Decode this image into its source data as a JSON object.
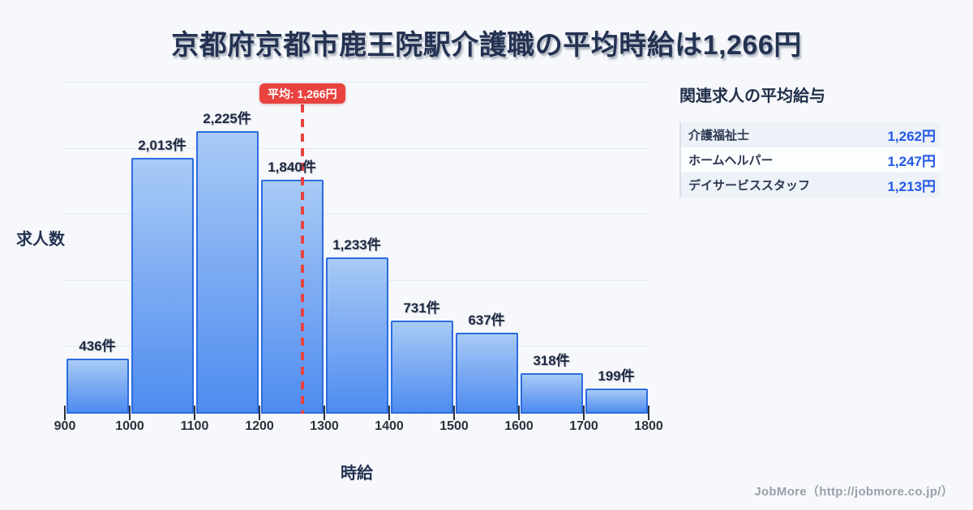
{
  "title": "京都府京都市鹿王院駅介護職の平均時給は1,266円",
  "chart_data": {
    "type": "bar",
    "title": "京都府京都市鹿王院駅介護職の平均時給は1,266円",
    "xlabel": "時給",
    "ylabel": "求人数",
    "categories": [
      "900-1000",
      "1000-1100",
      "1100-1200",
      "1200-1300",
      "1300-1400",
      "1400-1500",
      "1500-1600",
      "1600-1700",
      "1700-1800"
    ],
    "values": [
      436,
      2013,
      2225,
      1840,
      1233,
      731,
      637,
      318,
      199
    ],
    "bar_labels": [
      "436件",
      "2,013件",
      "2,225件",
      "1,840件",
      "1,233件",
      "731件",
      "637件",
      "318件",
      "199件"
    ],
    "x_ticks": [
      900,
      1000,
      1100,
      1200,
      1300,
      1400,
      1500,
      1600,
      1700,
      1800
    ],
    "xlim": [
      900,
      1800
    ],
    "ylim": [
      0,
      2614
    ],
    "grid": true,
    "grid_line_count": 6,
    "average": 1266,
    "average_label": "平均: 1,266円"
  },
  "side_panel": {
    "title": "関連求人の平均給与",
    "items": [
      {
        "label": "介護福祉士",
        "value": "1,262円"
      },
      {
        "label": "ホームヘルパー",
        "value": "1,247円"
      },
      {
        "label": "デイサービススタッフ",
        "value": "1,213円"
      }
    ]
  },
  "footer": {
    "text": "JobMore（http://jobmore.co.jp/）"
  },
  "colors": {
    "background": "#f6f8fb",
    "title_navy": "#243252",
    "bar_fill_top": "#a8cbf6",
    "bar_fill_bottom": "#4e8cf0",
    "bar_border": "#2b6cdf",
    "average_red": "#e9423f",
    "grid_line": "#e3e8f2",
    "panel_value_blue": "#2359e6",
    "footer_gray": "#9aa0aa"
  }
}
